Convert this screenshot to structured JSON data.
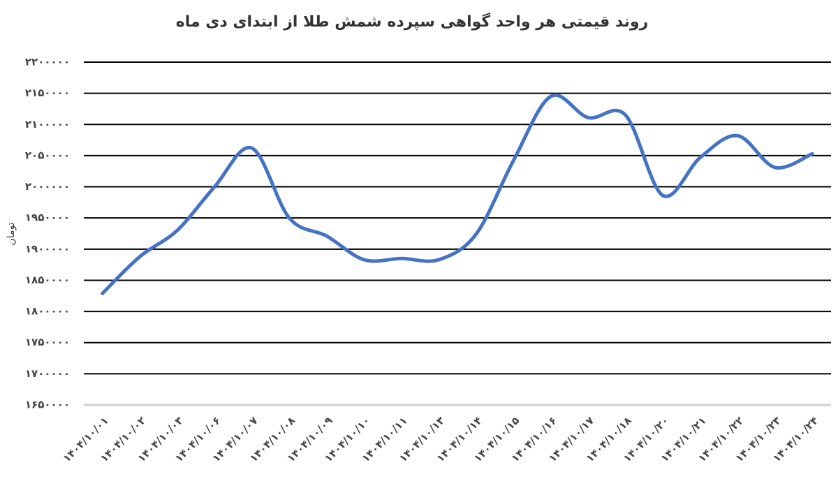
{
  "chart_data": {
    "type": "line",
    "title": "روند قیمتی هر واحد گواهی سپرده شمش طلا از ابتدای دی ماه",
    "y_label": "تومان",
    "categories": [
      "۱۴۰۴/۱۰/۰۱",
      "۱۴۰۴/۱۰/۰۲",
      "۱۴۰۴/۱۰/۰۳",
      "۱۴۰۴/۱۰/۰۶",
      "۱۴۰۴/۱۰/۰۷",
      "۱۴۰۴/۱۰/۰۸",
      "۱۴۰۴/۱۰/۰۹",
      "۱۴۰۴/۱۰/۱۰",
      "۱۴۰۴/۱۰/۱۱",
      "۱۴۰۴/۱۰/۱۳",
      "۱۴۰۴/۱۰/۱۴",
      "۱۴۰۴/۱۰/۱۵",
      "۱۴۰۴/۱۰/۱۶",
      "۱۴۰۴/۱۰/۱۷",
      "۱۴۰۴/۱۰/۱۸",
      "۱۴۰۴/۱۰/۲۰",
      "۱۴۰۴/۱۰/۲۱",
      "۱۴۰۴/۱۰/۲۲",
      "۱۴۰۴/۱۰/۲۳",
      "۱۴۰۴/۱۰/۲۴"
    ],
    "values": [
      1829000,
      1888000,
      1930000,
      2000000,
      2062000,
      1950000,
      1921000,
      1883000,
      1885000,
      1883000,
      1924000,
      2042000,
      2145000,
      2111000,
      2115000,
      1986000,
      2047000,
      2082000,
      2031000,
      2053000
    ],
    "color": "#4472c4",
    "ylim": [
      1650000,
      2200000
    ],
    "yticks": [
      {
        "value": 1650000,
        "label": "۱۶۵۰۰۰۰"
      },
      {
        "value": 1700000,
        "label": "۱۷۰۰۰۰۰"
      },
      {
        "value": 1750000,
        "label": "۱۷۵۰۰۰۰"
      },
      {
        "value": 1800000,
        "label": "۱۸۰۰۰۰۰"
      },
      {
        "value": 1850000,
        "label": "۱۸۵۰۰۰۰"
      },
      {
        "value": 1900000,
        "label": "۱۹۰۰۰۰۰"
      },
      {
        "value": 1950000,
        "label": "۱۹۵۰۰۰۰"
      },
      {
        "value": 2000000,
        "label": "۲۰۰۰۰۰۰"
      },
      {
        "value": 2050000,
        "label": "۲۰۵۰۰۰۰"
      },
      {
        "value": 2100000,
        "label": "۲۱۰۰۰۰۰"
      },
      {
        "value": 2150000,
        "label": "۲۱۵۰۰۰۰"
      },
      {
        "value": 2200000,
        "label": "۲۲۰۰۰۰۰"
      }
    ],
    "grid": true
  }
}
